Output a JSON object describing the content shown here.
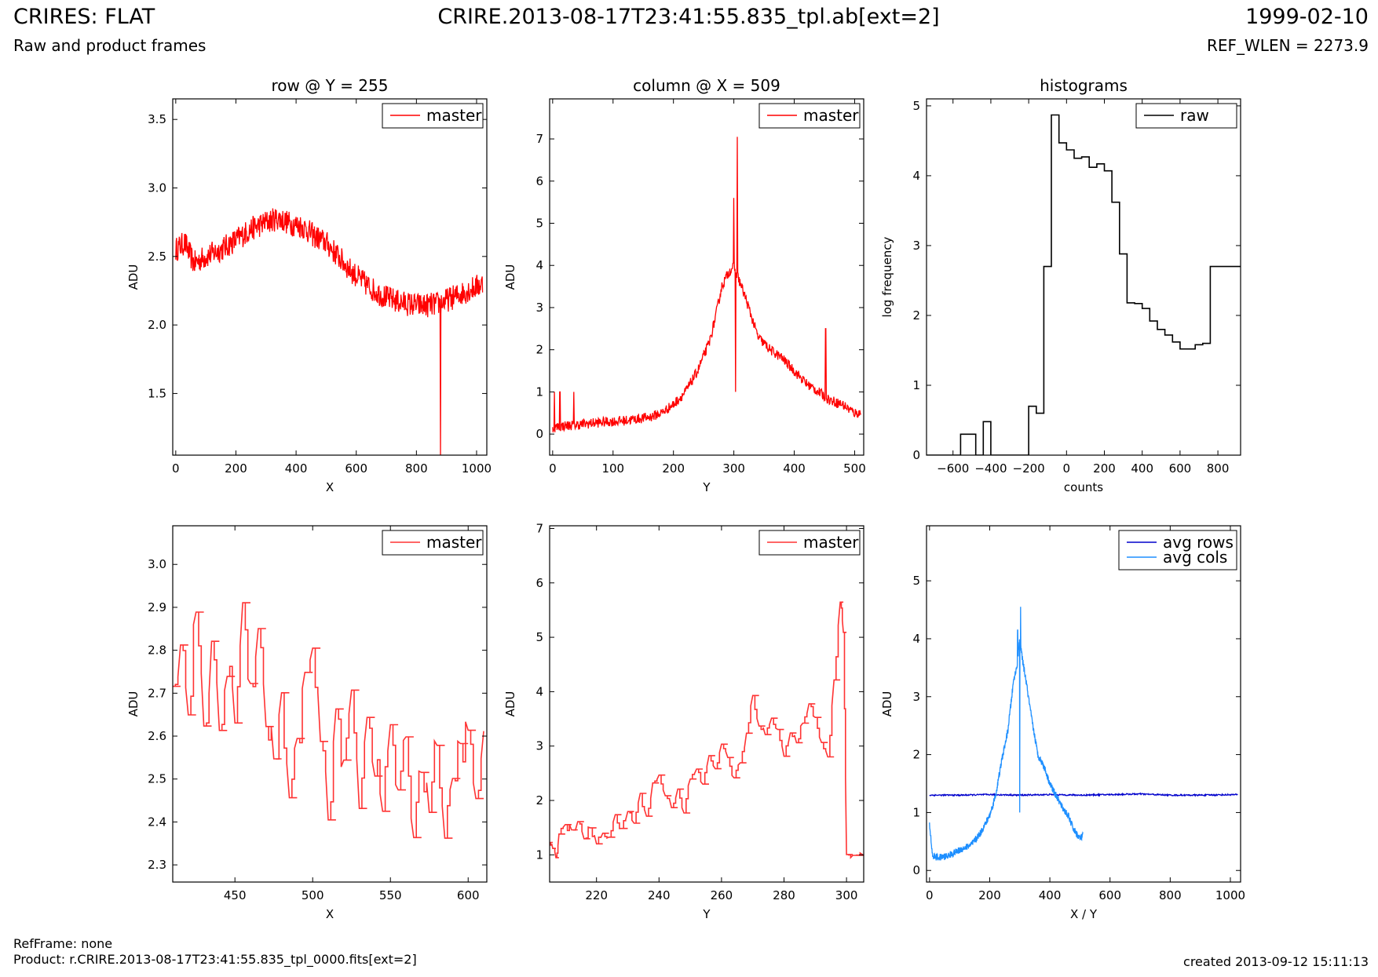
{
  "header": {
    "title": "CRIRES: FLAT",
    "subtitle": "Raw and product frames",
    "file": "CRIRE.2013-08-17T23:41:55.835_tpl.ab[ext=2]",
    "date": "1999-02-10",
    "ref_wlen": "REF_WLEN = 2273.9"
  },
  "footer": {
    "refframe": "RefFrame: none",
    "product": "Product: r.CRIRE.2013-08-17T23:41:55.835_tpl_0000.fits[ext=2]",
    "created": "created 2013-09-12 15:11:13"
  },
  "colors": {
    "red": "#ff0000",
    "dark_blue": "#0000cc",
    "light_blue": "#1e8fff",
    "black": "#000000"
  },
  "chart_data": [
    {
      "type": "line",
      "title": "row @ Y = 255",
      "xlabel": "X",
      "ylabel": "ADU",
      "xlim": [
        -10,
        1034
      ],
      "ylim": [
        1.05,
        3.65
      ],
      "xticks": [
        0,
        200,
        400,
        600,
        800,
        1000
      ],
      "yticks": [
        1.5,
        2.0,
        2.5,
        3.0,
        3.5
      ],
      "ytick_labels": [
        "1.5",
        "2.0",
        "2.5",
        "3.0",
        "3.5"
      ],
      "legend": "top-right",
      "series": [
        {
          "name": "master",
          "color": "#ff0000",
          "x": [
            0,
            30,
            60,
            100,
            150,
            200,
            250,
            300,
            340,
            380,
            420,
            460,
            500,
            540,
            580,
            620,
            660,
            700,
            740,
            780,
            820,
            860,
            880,
            900,
            940,
            980,
            1020
          ],
          "values": [
            2.55,
            2.6,
            2.45,
            2.5,
            2.55,
            2.62,
            2.7,
            2.75,
            2.78,
            2.74,
            2.72,
            2.65,
            2.6,
            2.5,
            2.4,
            2.32,
            2.25,
            2.2,
            2.17,
            2.15,
            2.14,
            2.15,
            2.16,
            2.18,
            2.22,
            2.26,
            2.3
          ],
          "noise": 0.09,
          "spikes": [
            {
              "x": 880,
              "y": 1.05
            }
          ]
        }
      ]
    },
    {
      "type": "line",
      "title": "column @ X = 509",
      "xlabel": "Y",
      "ylabel": "ADU",
      "xlim": [
        -5,
        515
      ],
      "ylim": [
        -0.5,
        7.95
      ],
      "xticks": [
        0,
        100,
        200,
        300,
        400,
        500
      ],
      "yticks": [
        0,
        1,
        2,
        3,
        4,
        5,
        6,
        7
      ],
      "ytick_labels": [
        "0",
        "1",
        "2",
        "3",
        "4",
        "5",
        "6",
        "7"
      ],
      "legend": "top-right",
      "series": [
        {
          "name": "master",
          "color": "#ff0000",
          "x": [
            0,
            20,
            40,
            80,
            120,
            160,
            180,
            200,
            220,
            240,
            260,
            270,
            280,
            290,
            300,
            310,
            320,
            340,
            360,
            380,
            400,
            420,
            440,
            460,
            480,
            500,
            510
          ],
          "values": [
            0.15,
            0.2,
            0.22,
            0.28,
            0.32,
            0.4,
            0.5,
            0.7,
            1.0,
            1.5,
            2.2,
            2.8,
            3.5,
            3.8,
            4.0,
            3.6,
            3.2,
            2.3,
            2.0,
            1.8,
            1.5,
            1.2,
            1.0,
            0.8,
            0.7,
            0.5,
            0.5
          ],
          "noise": 0.12,
          "spikes": [
            {
              "x": 3,
              "y": 1.0
            },
            {
              "x": 12,
              "y": 1.0
            },
            {
              "x": 35,
              "y": 1.0
            },
            {
              "x": 300,
              "y": 5.6
            },
            {
              "x": 306,
              "y": 7.05
            },
            {
              "x": 303,
              "y": 1.0
            },
            {
              "x": 452,
              "y": 2.5
            }
          ]
        }
      ]
    },
    {
      "type": "line",
      "title": "histograms",
      "xlabel": "counts",
      "ylabel": "log frequency",
      "xlim": [
        -740,
        920
      ],
      "ylim": [
        0,
        5.1
      ],
      "xticks": [
        -600,
        -400,
        -200,
        0,
        200,
        400,
        600,
        800
      ],
      "xtick_labels": [
        "−600",
        "−400",
        "−200",
        "0",
        "200",
        "400",
        "600",
        "800"
      ],
      "yticks": [
        0,
        1,
        2,
        3,
        4,
        5
      ],
      "ytick_labels": [
        "0",
        "1",
        "2",
        "3",
        "4",
        "5"
      ],
      "legend": "top-right",
      "series": [
        {
          "name": "raw",
          "color": "#000000",
          "step": true,
          "x": [
            -740,
            -720,
            -680,
            -640,
            -600,
            -560,
            -520,
            -480,
            -440,
            -400,
            -360,
            -320,
            -280,
            -240,
            -200,
            -160,
            -120,
            -80,
            -40,
            0,
            40,
            80,
            120,
            160,
            200,
            240,
            280,
            320,
            360,
            400,
            440,
            480,
            520,
            560,
            600,
            640,
            680,
            720,
            760,
            800,
            840,
            880,
            920
          ],
          "values": [
            0,
            0,
            0,
            0,
            0,
            0.3,
            0.3,
            0,
            0.48,
            0,
            0,
            0,
            0,
            0,
            0.7,
            0.6,
            2.7,
            4.87,
            4.47,
            4.37,
            4.25,
            4.27,
            4.12,
            4.17,
            4.07,
            3.62,
            2.88,
            2.18,
            2.17,
            2.1,
            1.92,
            1.8,
            1.72,
            1.62,
            1.52,
            1.52,
            1.58,
            1.6,
            2.7,
            2.7,
            2.7,
            2.7,
            2.7
          ]
        }
      ]
    },
    {
      "type": "line",
      "xlabel": "X",
      "ylabel": "ADU",
      "xlim": [
        410,
        612
      ],
      "ylim": [
        2.26,
        3.09
      ],
      "xticks": [
        450,
        500,
        550,
        600
      ],
      "yticks": [
        2.3,
        2.4,
        2.5,
        2.6,
        2.7,
        2.8,
        2.9,
        3.0
      ],
      "ytick_labels": [
        "2.3",
        "2.4",
        "2.5",
        "2.6",
        "2.7",
        "2.8",
        "2.9",
        "3.0"
      ],
      "legend": "top-right",
      "series": [
        {
          "name": "master",
          "color": "#ff3333",
          "step": true,
          "x": [
            410,
            415,
            420,
            425,
            430,
            435,
            440,
            445,
            450,
            455,
            460,
            465,
            470,
            475,
            480,
            485,
            490,
            495,
            500,
            505,
            510,
            515,
            520,
            525,
            530,
            535,
            540,
            545,
            550,
            555,
            560,
            565,
            570,
            575,
            580,
            585,
            590,
            595,
            600,
            605,
            610
          ],
          "values": [
            2.7,
            2.83,
            2.65,
            2.9,
            2.6,
            2.8,
            2.62,
            2.75,
            2.65,
            2.9,
            2.72,
            2.85,
            2.64,
            2.55,
            2.68,
            2.45,
            2.58,
            2.74,
            2.78,
            2.6,
            2.41,
            2.67,
            2.52,
            2.7,
            2.45,
            2.66,
            2.53,
            2.43,
            2.63,
            2.46,
            2.58,
            2.38,
            2.54,
            2.44,
            2.6,
            2.34,
            2.5,
            2.58,
            2.6,
            2.45,
            2.59
          ],
          "noise": 0.05
        }
      ]
    },
    {
      "type": "line",
      "xlabel": "Y",
      "ylabel": "ADU",
      "xlim": [
        205,
        305.5
      ],
      "ylim": [
        0.5,
        7.05
      ],
      "xticks": [
        220,
        240,
        260,
        280,
        300
      ],
      "yticks": [
        1,
        2,
        3,
        4,
        5,
        6,
        7
      ],
      "ytick_labels": [
        "1",
        "2",
        "3",
        "4",
        "5",
        "6",
        "7"
      ],
      "legend": "top-right",
      "series": [
        {
          "name": "master",
          "color": "#ff3333",
          "step": true,
          "x": [
            205,
            206,
            207,
            208,
            210,
            212,
            214,
            216,
            218,
            220,
            222,
            224,
            226,
            228,
            230,
            232,
            234,
            236,
            238,
            240,
            242,
            244,
            246,
            248,
            250,
            252,
            254,
            256,
            258,
            260,
            262,
            264,
            266,
            268,
            270,
            272,
            274,
            276,
            278,
            280,
            282,
            284,
            286,
            288,
            290,
            292,
            294,
            296,
            298,
            299,
            300,
            302,
            305.5
          ],
          "values": [
            1.25,
            1.1,
            0.95,
            1.4,
            1.55,
            1.45,
            1.6,
            1.3,
            1.5,
            1.2,
            1.4,
            1.35,
            1.7,
            1.45,
            1.8,
            1.6,
            2.1,
            1.7,
            2.3,
            2.45,
            2.1,
            1.9,
            2.2,
            1.8,
            2.4,
            2.55,
            2.3,
            2.8,
            2.6,
            3.0,
            2.8,
            2.4,
            2.7,
            3.2,
            3.9,
            3.4,
            3.2,
            3.55,
            3.3,
            2.8,
            3.2,
            3.1,
            3.4,
            3.8,
            3.5,
            3.1,
            2.8,
            4.2,
            5.65,
            5.1,
            1.0,
            1.0,
            1.0
          ],
          "noise": 0.08
        }
      ]
    },
    {
      "type": "line",
      "xlabel": "X / Y",
      "ylabel": "ADU",
      "xlim": [
        -10,
        1034
      ],
      "ylim": [
        -0.2,
        5.95
      ],
      "xticks": [
        0,
        200,
        400,
        600,
        800,
        1000
      ],
      "yticks": [
        0,
        1,
        2,
        3,
        4,
        5
      ],
      "ytick_labels": [
        "0",
        "1",
        "2",
        "3",
        "4",
        "5"
      ],
      "legend": "top-right",
      "series": [
        {
          "name": "avg rows",
          "color": "#0000cc",
          "x": [
            0,
            100,
            200,
            300,
            400,
            500,
            600,
            700,
            800,
            900,
            1024
          ],
          "values": [
            1.3,
            1.3,
            1.31,
            1.3,
            1.31,
            1.3,
            1.31,
            1.32,
            1.3,
            1.3,
            1.31
          ],
          "noise": 0.012
        },
        {
          "name": "avg cols",
          "color": "#1e8fff",
          "x": [
            0,
            10,
            30,
            60,
            100,
            140,
            170,
            200,
            220,
            240,
            260,
            280,
            290,
            300,
            310,
            320,
            340,
            360,
            380,
            400,
            420,
            440,
            460,
            480,
            500,
            510
          ],
          "values": [
            0.8,
            0.25,
            0.22,
            0.25,
            0.35,
            0.45,
            0.65,
            0.95,
            1.3,
            1.9,
            2.4,
            3.3,
            3.5,
            4.0,
            3.6,
            3.3,
            2.6,
            2.0,
            1.8,
            1.5,
            1.3,
            1.1,
            0.95,
            0.7,
            0.55,
            0.6
          ],
          "noise": 0.06,
          "spikes": [
            {
              "x": 300,
              "y": 1.0
            },
            {
              "x": 303,
              "y": 4.55
            },
            {
              "x": 293,
              "y": 4.15
            }
          ]
        }
      ]
    }
  ]
}
